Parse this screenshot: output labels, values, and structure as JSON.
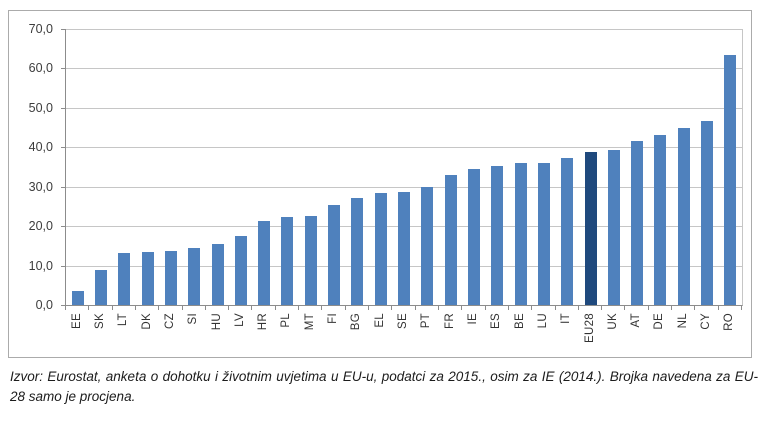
{
  "chart_data": {
    "type": "bar",
    "title": "",
    "categories": [
      "EE",
      "SK",
      "LT",
      "DK",
      "CZ",
      "SI",
      "HU",
      "LV",
      "HR",
      "PL",
      "MT",
      "FI",
      "BG",
      "EL",
      "SE",
      "PT",
      "FR",
      "IE",
      "ES",
      "BE",
      "LU",
      "IT",
      "EU28",
      "UK",
      "AT",
      "DE",
      "NL",
      "CY",
      "RO"
    ],
    "values": [
      3.5,
      9.0,
      13.2,
      13.4,
      13.8,
      14.5,
      15.5,
      17.4,
      21.2,
      22.2,
      22.7,
      25.3,
      27.2,
      28.5,
      28.7,
      30.0,
      33.0,
      34.5,
      35.2,
      36.0,
      36.1,
      37.2,
      38.7,
      39.2,
      41.6,
      43.0,
      44.9,
      46.6,
      63.3
    ],
    "highlight_category": "EU28",
    "xlabel": "",
    "ylabel": "",
    "ylim": [
      0,
      70
    ],
    "ytick_step": 10,
    "ytick_labels": [
      "0,0",
      "10,0",
      "20,0",
      "30,0",
      "40,0",
      "50,0",
      "60,0",
      "70,0"
    ],
    "grid": true,
    "legend": "none",
    "bar_color": "#4f81bd",
    "highlight_color": "#1f497d",
    "gridline_color": "#c6c6c6",
    "axis_color": "#8c8c8c"
  },
  "caption": {
    "text": "Izvor: Eurostat, anketa o dohotku i životnim uvjetima u EU-u, podatci za 2015., osim za IE (2014.). Brojka navedena za EU-28 samo je procjena."
  }
}
